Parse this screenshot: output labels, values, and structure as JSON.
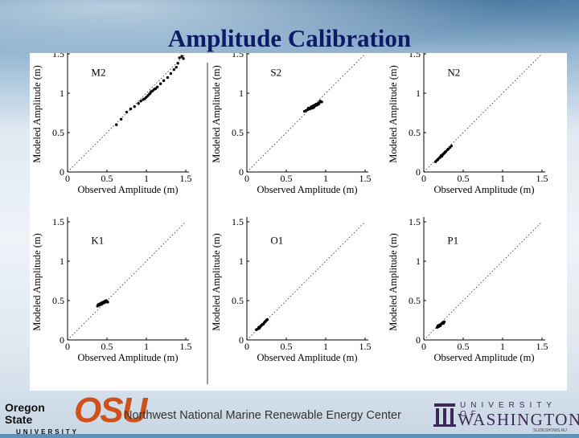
{
  "title": "Amplitude Calibration",
  "footer": {
    "osu_wordmark_line1": "Oregon State",
    "osu_wordmark_line2": "UNIVERSITY",
    "osu_logo": "OSU",
    "center_text": "Northwest National Marine Renewable Energy Center",
    "uw_line1": "UNIVERSITY OF",
    "uw_line2": "WASHINGTON",
    "page_mark": "SLIDESHOWS.RU"
  },
  "colors": {
    "title": "#0d1a66",
    "osu_orange": "#d0501a",
    "uw_purple": "#3a2a55"
  },
  "icons": {
    "uw_logo": "columns-w-icon"
  },
  "chart_data": [
    {
      "type": "scatter",
      "label": "M2",
      "xlabel": "Observed Amplitude (m)",
      "ylabel": "Modeled Amplitude (m)",
      "xlim": [
        0,
        1.5
      ],
      "ylim": [
        0,
        1.5
      ],
      "xticks": [
        "0",
        "0.5",
        "1",
        "1.5"
      ],
      "yticks": [
        "0",
        "0.5",
        "1",
        "1.5"
      ],
      "reference_line": "y = x",
      "points": [
        [
          0.62,
          0.6
        ],
        [
          0.68,
          0.67
        ],
        [
          0.75,
          0.76
        ],
        [
          0.8,
          0.8
        ],
        [
          0.85,
          0.83
        ],
        [
          0.9,
          0.87
        ],
        [
          0.93,
          0.9
        ],
        [
          0.96,
          0.92
        ],
        [
          0.98,
          0.93
        ],
        [
          1.0,
          0.95
        ],
        [
          1.02,
          0.97
        ],
        [
          1.04,
          0.99
        ],
        [
          1.05,
          1.0
        ],
        [
          1.06,
          1.02
        ],
        [
          1.08,
          1.03
        ],
        [
          1.1,
          1.05
        ],
        [
          1.12,
          1.06
        ],
        [
          1.14,
          1.08
        ],
        [
          1.18,
          1.12
        ],
        [
          1.22,
          1.16
        ],
        [
          1.27,
          1.2
        ],
        [
          1.31,
          1.25
        ],
        [
          1.35,
          1.3
        ],
        [
          1.38,
          1.33
        ],
        [
          1.4,
          1.38
        ],
        [
          1.42,
          1.45
        ],
        [
          1.45,
          1.47
        ],
        [
          1.47,
          1.44
        ]
      ]
    },
    {
      "type": "scatter",
      "label": "S2",
      "xlabel": "Observed Amplitude (m)",
      "ylabel": "Modeled Amplitude (m)",
      "xlim": [
        0,
        1.5
      ],
      "ylim": [
        0,
        1.5
      ],
      "xticks": [
        "0",
        "0.5",
        "1",
        "1.5"
      ],
      "yticks": [
        "0",
        "0.5",
        "1",
        "1.5"
      ],
      "reference_line": "y = x",
      "points": [
        [
          0.73,
          0.77
        ],
        [
          0.75,
          0.78
        ],
        [
          0.77,
          0.79
        ],
        [
          0.78,
          0.81
        ],
        [
          0.8,
          0.8
        ],
        [
          0.81,
          0.82
        ],
        [
          0.82,
          0.83
        ],
        [
          0.83,
          0.81
        ],
        [
          0.84,
          0.84
        ],
        [
          0.85,
          0.82
        ],
        [
          0.86,
          0.85
        ],
        [
          0.87,
          0.84
        ],
        [
          0.88,
          0.86
        ],
        [
          0.89,
          0.85
        ],
        [
          0.9,
          0.87
        ],
        [
          0.91,
          0.86
        ],
        [
          0.92,
          0.88
        ],
        [
          0.93,
          0.9
        ],
        [
          0.95,
          0.89
        ]
      ]
    },
    {
      "type": "scatter",
      "label": "N2",
      "xlabel": "Observed Amplitude (m)",
      "ylabel": "Modeled Amplitude (m)",
      "xlim": [
        0,
        1.5
      ],
      "ylim": [
        0,
        1.5
      ],
      "xticks": [
        "0",
        "0.5",
        "1",
        "1.5"
      ],
      "yticks": [
        "0",
        "0.5",
        "1",
        "1.5"
      ],
      "reference_line": "y = x",
      "points": [
        [
          0.15,
          0.13
        ],
        [
          0.17,
          0.15
        ],
        [
          0.18,
          0.16
        ],
        [
          0.2,
          0.18
        ],
        [
          0.21,
          0.19
        ],
        [
          0.22,
          0.21
        ],
        [
          0.23,
          0.2
        ],
        [
          0.24,
          0.22
        ],
        [
          0.25,
          0.23
        ],
        [
          0.26,
          0.24
        ],
        [
          0.27,
          0.25
        ],
        [
          0.28,
          0.26
        ],
        [
          0.3,
          0.28
        ],
        [
          0.31,
          0.29
        ],
        [
          0.33,
          0.31
        ],
        [
          0.35,
          0.33
        ]
      ]
    },
    {
      "type": "scatter",
      "label": "K1",
      "xlabel": "Observed Amplitude (m)",
      "ylabel": "Modeled Amplitude (m)",
      "xlim": [
        0,
        1.5
      ],
      "ylim": [
        0,
        1.5
      ],
      "xticks": [
        "0",
        "0.5",
        "1",
        "1.5"
      ],
      "yticks": [
        "0",
        "0.5",
        "1",
        "1.5"
      ],
      "reference_line": "y = x",
      "points": [
        [
          0.38,
          0.43
        ],
        [
          0.39,
          0.45
        ],
        [
          0.4,
          0.44
        ],
        [
          0.41,
          0.46
        ],
        [
          0.42,
          0.45
        ],
        [
          0.43,
          0.47
        ],
        [
          0.44,
          0.46
        ],
        [
          0.45,
          0.48
        ],
        [
          0.46,
          0.47
        ],
        [
          0.47,
          0.49
        ],
        [
          0.48,
          0.48
        ],
        [
          0.49,
          0.5
        ],
        [
          0.5,
          0.49
        ],
        [
          0.51,
          0.48
        ]
      ]
    },
    {
      "type": "scatter",
      "label": "O1",
      "xlabel": "Observed Amplitude (m)",
      "ylabel": "Modeled Amplitude (m)",
      "xlim": [
        0,
        1.5
      ],
      "ylim": [
        0,
        1.5
      ],
      "xticks": [
        "0",
        "0.5",
        "1",
        "1.5"
      ],
      "yticks": [
        "0",
        "0.5",
        "1",
        "1.5"
      ],
      "reference_line": "y = x",
      "points": [
        [
          0.12,
          0.13
        ],
        [
          0.14,
          0.14
        ],
        [
          0.15,
          0.16
        ],
        [
          0.16,
          0.15
        ],
        [
          0.17,
          0.17
        ],
        [
          0.18,
          0.18
        ],
        [
          0.19,
          0.19
        ],
        [
          0.2,
          0.2
        ],
        [
          0.21,
          0.2
        ],
        [
          0.22,
          0.22
        ],
        [
          0.23,
          0.23
        ],
        [
          0.24,
          0.24
        ],
        [
          0.25,
          0.25
        ],
        [
          0.26,
          0.26
        ]
      ]
    },
    {
      "type": "scatter",
      "label": "P1",
      "xlabel": "Observed Amplitude (m)",
      "ylabel": "Modeled Amplitude (m)",
      "xlim": [
        0,
        1.5
      ],
      "ylim": [
        0,
        1.5
      ],
      "xticks": [
        "0",
        "0.5",
        "1",
        "1.5"
      ],
      "yticks": [
        "0",
        "0.5",
        "1",
        "1.5"
      ],
      "reference_line": "y = x",
      "points": [
        [
          0.17,
          0.16
        ],
        [
          0.18,
          0.18
        ],
        [
          0.19,
          0.17
        ],
        [
          0.2,
          0.19
        ],
        [
          0.21,
          0.18
        ],
        [
          0.22,
          0.2
        ],
        [
          0.23,
          0.21
        ],
        [
          0.24,
          0.22
        ],
        [
          0.25,
          0.21
        ],
        [
          0.26,
          0.23
        ]
      ]
    }
  ]
}
